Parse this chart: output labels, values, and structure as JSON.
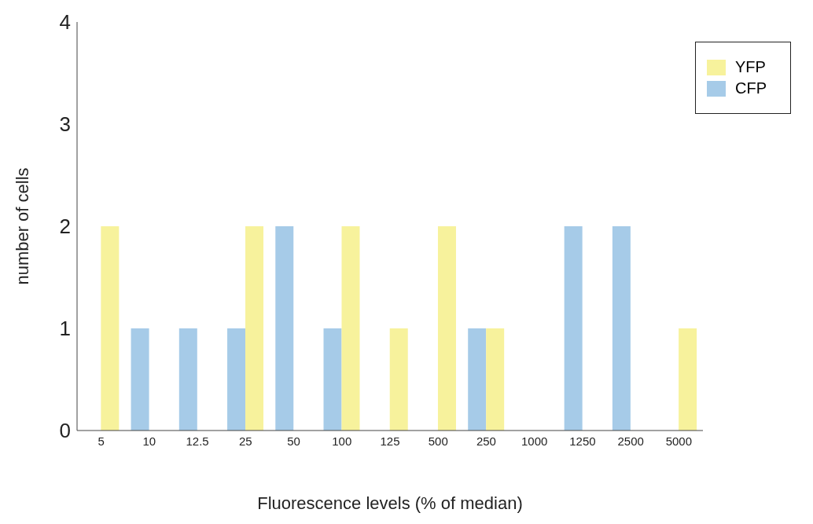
{
  "chart_data": {
    "type": "bar",
    "xlabel": "Fluorescence levels (% of median)",
    "ylabel": "number of cells",
    "categories": [
      "5",
      "10",
      "12.5",
      "25",
      "50",
      "100",
      "125",
      "500",
      "250",
      "1000",
      "1250",
      "2500",
      "5000"
    ],
    "series": [
      {
        "name": "CFP",
        "color": "#a6cbe8",
        "values": [
          0,
          1,
          1,
          1,
          2,
          1,
          0,
          0,
          1,
          0,
          2,
          2,
          0
        ]
      },
      {
        "name": "YFP",
        "color": "#f7f29c",
        "values": [
          2,
          0,
          0,
          2,
          0,
          2,
          1,
          2,
          1,
          0,
          0,
          0,
          1
        ]
      }
    ],
    "ylim": [
      0,
      4
    ],
    "yticks": [
      0,
      1,
      2,
      3,
      4
    ],
    "legend": "top right"
  }
}
